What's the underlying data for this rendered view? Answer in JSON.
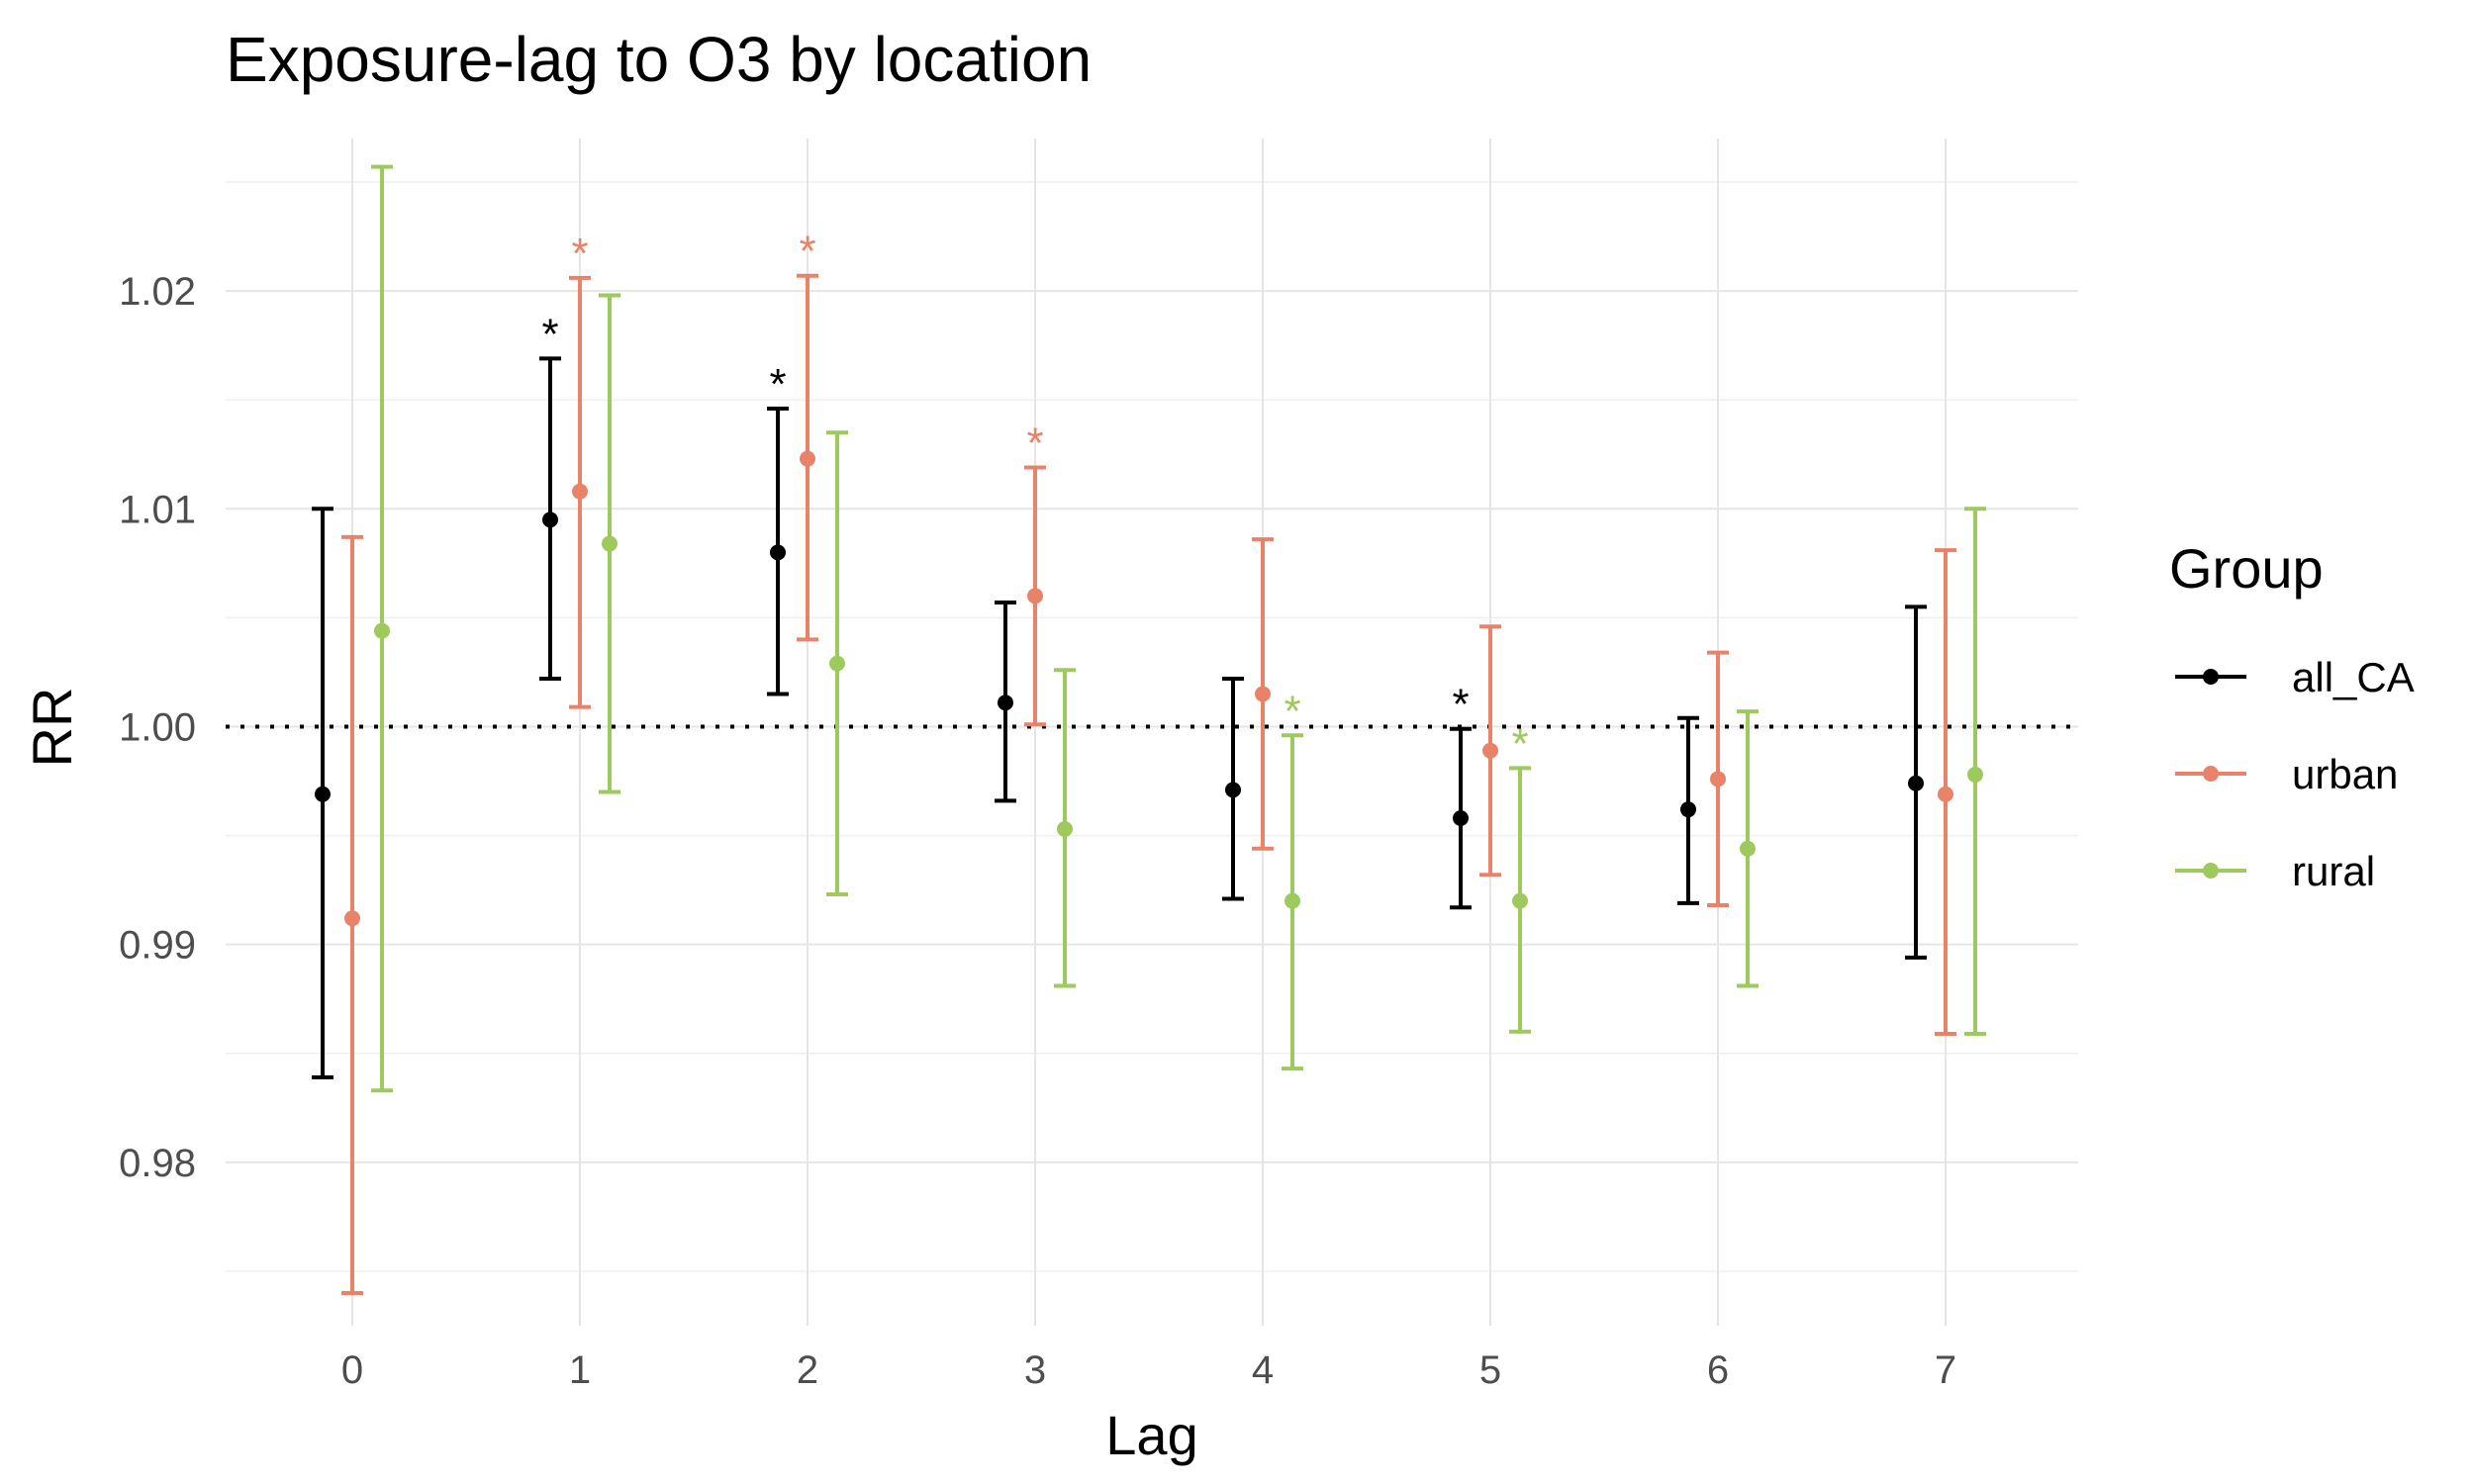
{
  "chart_data": {
    "type": "scatter",
    "title": "Exposure-lag to O3 by location",
    "xlabel": "Lag",
    "ylabel": "RR",
    "x_ticks": [
      "0",
      "1",
      "2",
      "3",
      "4",
      "5",
      "6",
      "7"
    ],
    "y_ticks": [
      "0.98",
      "0.99",
      "1.00",
      "1.01",
      "1.02"
    ],
    "ylim": [
      0.9725,
      1.027
    ],
    "reference_line": 1.0,
    "grid": true,
    "legend": {
      "title": "Group",
      "position": "right"
    },
    "series": [
      {
        "name": "all_CA",
        "color": "#000000",
        "points": [
          {
            "lag": 0,
            "rr": 0.9969,
            "lower": 0.9839,
            "upper": 1.01,
            "sig": false
          },
          {
            "lag": 1,
            "rr": 1.0095,
            "lower": 1.0022,
            "upper": 1.0169,
            "sig": true
          },
          {
            "lag": 2,
            "rr": 1.008,
            "lower": 1.0015,
            "upper": 1.0146,
            "sig": true
          },
          {
            "lag": 3,
            "rr": 1.0011,
            "lower": 0.9966,
            "upper": 1.0057,
            "sig": false
          },
          {
            "lag": 4,
            "rr": 0.9971,
            "lower": 0.9921,
            "upper": 1.0022,
            "sig": false
          },
          {
            "lag": 5,
            "rr": 0.9958,
            "lower": 0.9917,
            "upper": 0.9999,
            "sig": true
          },
          {
            "lag": 6,
            "rr": 0.9962,
            "lower": 0.9919,
            "upper": 1.0004,
            "sig": false
          },
          {
            "lag": 7,
            "rr": 0.9974,
            "lower": 0.9894,
            "upper": 1.0055,
            "sig": false
          }
        ]
      },
      {
        "name": "urban",
        "color": "#E8836A",
        "points": [
          {
            "lag": 0,
            "rr": 0.9912,
            "lower": 0.974,
            "upper": 1.0087,
            "sig": false
          },
          {
            "lag": 1,
            "rr": 1.0108,
            "lower": 1.0009,
            "upper": 1.0206,
            "sig": true
          },
          {
            "lag": 2,
            "rr": 1.0123,
            "lower": 1.004,
            "upper": 1.0207,
            "sig": true
          },
          {
            "lag": 3,
            "rr": 1.006,
            "lower": 1.0001,
            "upper": 1.0119,
            "sig": true
          },
          {
            "lag": 4,
            "rr": 1.0015,
            "lower": 0.9944,
            "upper": 1.0086,
            "sig": false
          },
          {
            "lag": 5,
            "rr": 0.9989,
            "lower": 0.9932,
            "upper": 1.0046,
            "sig": false
          },
          {
            "lag": 6,
            "rr": 0.9976,
            "lower": 0.9918,
            "upper": 1.0034,
            "sig": false
          },
          {
            "lag": 7,
            "rr": 0.9969,
            "lower": 0.9859,
            "upper": 1.0081,
            "sig": false
          }
        ]
      },
      {
        "name": "rural",
        "color": "#9DC95D",
        "points": [
          {
            "lag": 0,
            "rr": 1.0044,
            "lower": 0.9833,
            "upper": 1.0257,
            "sig": false
          },
          {
            "lag": 1,
            "rr": 1.0084,
            "lower": 0.997,
            "upper": 1.0198,
            "sig": false
          },
          {
            "lag": 2,
            "rr": 1.0029,
            "lower": 0.9923,
            "upper": 1.0135,
            "sig": false
          },
          {
            "lag": 3,
            "rr": 0.9953,
            "lower": 0.9881,
            "upper": 1.0026,
            "sig": false
          },
          {
            "lag": 4,
            "rr": 0.992,
            "lower": 0.9843,
            "upper": 0.9996,
            "sig": true
          },
          {
            "lag": 5,
            "rr": 0.992,
            "lower": 0.986,
            "upper": 0.9981,
            "sig": true
          },
          {
            "lag": 6,
            "rr": 0.9944,
            "lower": 0.9881,
            "upper": 1.0007,
            "sig": false
          },
          {
            "lag": 7,
            "rr": 0.9978,
            "lower": 0.9859,
            "upper": 1.01,
            "sig": false
          }
        ]
      }
    ],
    "significance_marker": "*"
  }
}
